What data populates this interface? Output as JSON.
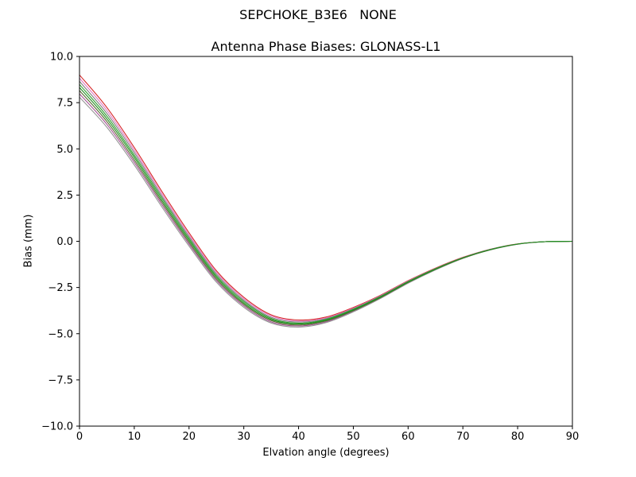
{
  "figure": {
    "suptitle": "SEPCHOKE_B3E6   NONE",
    "background_color": "#ffffff",
    "axis_color": "#000000"
  },
  "chart_data": {
    "type": "line",
    "title": "Antenna Phase Biases: GLONASS-L1",
    "xlabel": "Elvation angle (degrees)",
    "ylabel": "Bias (mm)",
    "xlim": [
      0,
      90
    ],
    "ylim": [
      -10.0,
      10.0
    ],
    "grid": false,
    "legend": "none",
    "line_width": 1.1,
    "xticks": {
      "values": [
        0,
        10,
        20,
        30,
        40,
        50,
        60,
        70,
        80,
        90
      ],
      "labels": [
        "0",
        "10",
        "20",
        "30",
        "40",
        "50",
        "60",
        "70",
        "80",
        "90"
      ]
    },
    "yticks": {
      "values": [
        -10.0,
        -7.5,
        -5.0,
        -2.5,
        0.0,
        2.5,
        5.0,
        7.5,
        10.0
      ],
      "labels": [
        "−10.0",
        "−7.5",
        "−5.0",
        "−2.5",
        "0.0",
        "2.5",
        "5.0",
        "7.5",
        "10.0"
      ]
    },
    "x": [
      0,
      5,
      10,
      15,
      20,
      25,
      30,
      35,
      40,
      45,
      50,
      55,
      60,
      65,
      70,
      75,
      80,
      85,
      90
    ],
    "series": [
      {
        "name": "line-1",
        "color": "#d62728",
        "values": [
          9.0,
          7.24,
          5.07,
          2.72,
          0.46,
          -1.59,
          -3.03,
          -3.98,
          -4.26,
          -4.1,
          -3.58,
          -2.91,
          -2.13,
          -1.45,
          -0.87,
          -0.43,
          -0.14,
          -0.02,
          0.0
        ]
      },
      {
        "name": "line-2",
        "color": "#e377c2",
        "values": [
          8.82,
          7.08,
          4.93,
          2.59,
          0.35,
          -1.68,
          -3.11,
          -4.04,
          -4.32,
          -4.15,
          -3.62,
          -2.94,
          -2.15,
          -1.47,
          -0.88,
          -0.44,
          -0.15,
          -0.02,
          0.0
        ]
      },
      {
        "name": "line-3",
        "color": "#a55194",
        "values": [
          7.98,
          6.33,
          4.27,
          2.01,
          -0.15,
          -2.12,
          -3.49,
          -4.36,
          -4.58,
          -4.36,
          -3.78,
          -3.06,
          -2.25,
          -1.53,
          -0.92,
          -0.46,
          -0.16,
          -0.02,
          0.0
        ]
      },
      {
        "name": "line-4",
        "color": "#969696",
        "values": [
          7.8,
          6.17,
          4.13,
          1.88,
          -0.26,
          -2.21,
          -3.57,
          -4.42,
          -4.64,
          -4.4,
          -3.82,
          -3.09,
          -2.27,
          -1.55,
          -0.93,
          -0.47,
          -0.16,
          -0.02,
          0.0
        ]
      },
      {
        "name": "line-5",
        "color": "#7f7f7f",
        "values": [
          8.65,
          6.92,
          4.8,
          2.47,
          0.25,
          -1.77,
          -3.19,
          -4.11,
          -4.37,
          -4.19,
          -3.65,
          -2.96,
          -2.17,
          -1.48,
          -0.89,
          -0.44,
          -0.15,
          -0.02,
          0.0
        ]
      },
      {
        "name": "line-6",
        "color": "#556b2f",
        "values": [
          8.15,
          6.48,
          4.4,
          2.13,
          -0.05,
          -2.03,
          -3.41,
          -4.29,
          -4.53,
          -4.31,
          -3.75,
          -3.04,
          -2.23,
          -1.52,
          -0.91,
          -0.46,
          -0.15,
          -0.02,
          0.0
        ]
      },
      {
        "name": "line-7",
        "color": "#2ca02c",
        "values": [
          8.48,
          6.77,
          4.66,
          2.36,
          0.15,
          -1.86,
          -3.26,
          -4.17,
          -4.43,
          -4.23,
          -3.68,
          -2.99,
          -2.19,
          -1.49,
          -0.9,
          -0.45,
          -0.15,
          -0.02,
          0.0
        ]
      },
      {
        "name": "line-8",
        "color": "#228b22",
        "values": [
          8.32,
          6.63,
          4.54,
          2.24,
          0.05,
          -1.94,
          -3.34,
          -4.23,
          -4.47,
          -4.27,
          -3.72,
          -3.01,
          -2.21,
          -1.51,
          -0.9,
          -0.45,
          -0.15,
          -0.02,
          0.0
        ]
      }
    ]
  }
}
